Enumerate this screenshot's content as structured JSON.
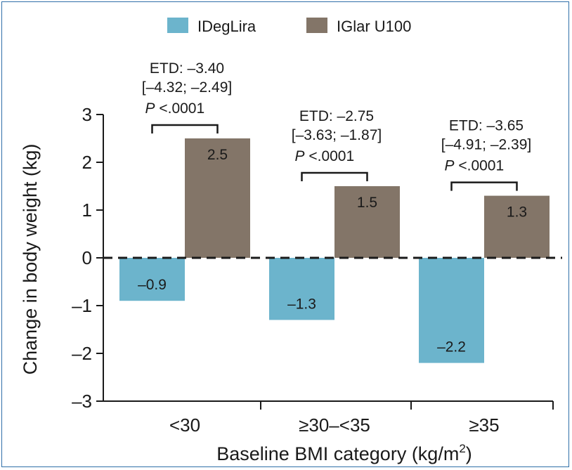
{
  "chart_data": {
    "type": "bar",
    "ylabel": "Change in body weight (kg)",
    "xlabel": "Baseline BMI category (kg/m",
    "xlabel_superscript": "2",
    "xlabel_suffix": ")",
    "ylim": [
      -3,
      3
    ],
    "yticks": [
      "–3",
      "–2",
      "–1",
      "0",
      "1",
      "2",
      "3"
    ],
    "categories": [
      "<30",
      "≥30–<35",
      "≥35"
    ],
    "legend_position": "top",
    "series": [
      {
        "name": "IDegLira",
        "color": "#6cb4cc",
        "values": [
          -0.9,
          -1.3,
          -2.2
        ],
        "labels": [
          "–0.9",
          "–1.3",
          "–2.2"
        ]
      },
      {
        "name": "IGlar U100",
        "color": "#837568",
        "values": [
          2.5,
          1.5,
          1.3
        ],
        "labels": [
          "2.5",
          "1.5",
          "1.3"
        ]
      }
    ],
    "annotations": [
      {
        "line1": "ETD: –3.40",
        "line2": "[–4.32; –2.49]",
        "p_italic": "P",
        "p_rest": " <.0001"
      },
      {
        "line1": "ETD: –2.75",
        "line2": "[–3.63; –1.87]",
        "p_italic": "P",
        "p_rest": " <.0001"
      },
      {
        "line1": "ETD: –3.65",
        "line2": "[–4.91; –2.39]",
        "p_italic": "P",
        "p_rest": " <.0001"
      }
    ],
    "zero_line_style": "dashed"
  }
}
